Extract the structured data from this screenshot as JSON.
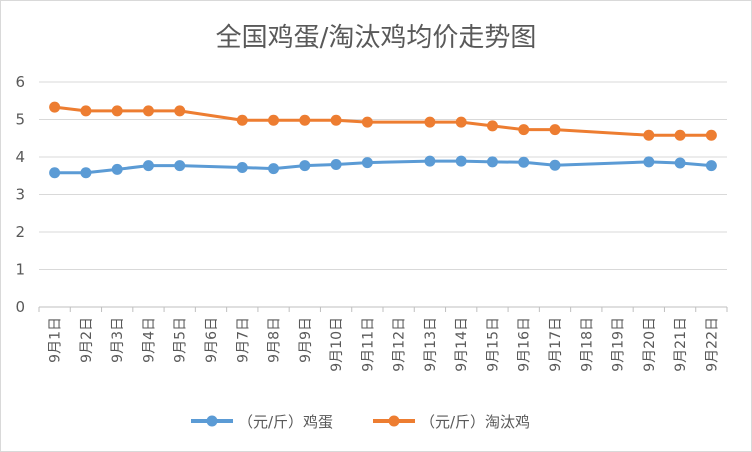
{
  "chart_data": {
    "type": "line",
    "title": "全国鸡蛋/淘汰鸡均价走势图",
    "categories": [
      "9月1日",
      "9月2日",
      "9月3日",
      "9月4日",
      "9月5日",
      "9月6日",
      "9月7日",
      "9月8日",
      "9月9日",
      "9月10日",
      "9月11日",
      "9月12日",
      "9月13日",
      "9月14日",
      "9月15日",
      "9月16日",
      "9月17日",
      "9月18日",
      "9月19日",
      "9月20日",
      "9月21日",
      "9月22日"
    ],
    "y_ticks": [
      "0",
      "1",
      "2",
      "3",
      "4",
      "5",
      "6"
    ],
    "ylim": [
      0,
      6
    ],
    "grid": true,
    "legend_position": "bottom",
    "series": [
      {
        "name": "（元/斤）鸡蛋",
        "color": "#5b9bd5",
        "values": [
          3.58,
          3.58,
          3.67,
          3.77,
          3.77,
          null,
          3.72,
          3.69,
          3.77,
          3.8,
          3.85,
          null,
          3.89,
          3.89,
          3.87,
          3.86,
          3.78,
          null,
          null,
          3.87,
          3.84,
          3.77
        ]
      },
      {
        "name": "（元/斤）淘汰鸡",
        "color": "#ed7d31",
        "values": [
          5.33,
          5.23,
          5.23,
          5.23,
          5.23,
          null,
          4.98,
          4.98,
          4.98,
          4.98,
          4.93,
          null,
          4.93,
          4.93,
          4.83,
          4.73,
          4.73,
          null,
          null,
          4.58,
          4.58,
          4.58
        ]
      }
    ]
  }
}
